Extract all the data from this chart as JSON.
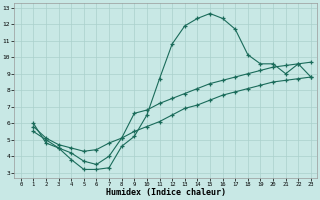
{
  "xlabel": "Humidex (Indice chaleur)",
  "bg_color": "#c8e8e5",
  "grid_color": "#aad0cc",
  "line_color": "#1a6b5a",
  "xlim": [
    -0.5,
    23.5
  ],
  "ylim": [
    2.7,
    13.3
  ],
  "xticks": [
    0,
    1,
    2,
    3,
    4,
    5,
    6,
    7,
    8,
    9,
    10,
    11,
    12,
    13,
    14,
    15,
    16,
    17,
    18,
    19,
    20,
    21,
    22,
    23
  ],
  "yticks": [
    3,
    4,
    5,
    6,
    7,
    8,
    9,
    10,
    11,
    12,
    13
  ],
  "line1": {
    "x": [
      1,
      2,
      3,
      4,
      5,
      6,
      7,
      8,
      9,
      10,
      11,
      12,
      13,
      14,
      15,
      16,
      17,
      18,
      19,
      20,
      21,
      22,
      23
    ],
    "y": [
      6.0,
      4.8,
      4.5,
      3.8,
      3.2,
      3.2,
      3.3,
      4.6,
      5.2,
      6.5,
      8.7,
      10.8,
      11.9,
      12.35,
      12.65,
      12.35,
      11.7,
      10.15,
      9.6,
      9.6,
      9.0,
      9.6,
      8.8
    ]
  },
  "line2": {
    "x": [
      1,
      2,
      3,
      4,
      5,
      6,
      7,
      8,
      9,
      10,
      11,
      12,
      13,
      14,
      15,
      16,
      17,
      18,
      19,
      20,
      21,
      22,
      23
    ],
    "y": [
      5.5,
      5.0,
      4.5,
      4.2,
      3.7,
      3.5,
      4.0,
      5.1,
      6.6,
      6.8,
      7.2,
      7.5,
      7.8,
      8.1,
      8.4,
      8.6,
      8.8,
      9.0,
      9.2,
      9.4,
      9.5,
      9.6,
      9.7
    ]
  },
  "line3": {
    "x": [
      1,
      2,
      3,
      4,
      5,
      6,
      7,
      8,
      9,
      10,
      11,
      12,
      13,
      14,
      15,
      16,
      17,
      18,
      19,
      20,
      21,
      22,
      23
    ],
    "y": [
      5.8,
      5.1,
      4.7,
      4.5,
      4.3,
      4.4,
      4.8,
      5.1,
      5.5,
      5.8,
      6.1,
      6.5,
      6.9,
      7.1,
      7.4,
      7.7,
      7.9,
      8.1,
      8.3,
      8.5,
      8.6,
      8.7,
      8.8
    ]
  }
}
